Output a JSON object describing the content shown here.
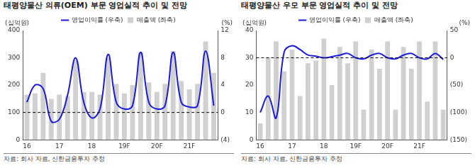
{
  "chart_data": [
    {
      "type": "bar",
      "title": "태평양물산 의류(OEM) 부문 영업실적 추이 및 전망",
      "ylabel": "(십억원)",
      "y2label": "(%)",
      "source": "자료: 회사 자료, 신한금융투자 추정",
      "categories": [
        "16",
        null,
        null,
        null,
        "17",
        null,
        null,
        null,
        "18",
        null,
        null,
        null,
        "19F",
        null,
        null,
        null,
        "20F",
        null,
        null,
        null,
        "21F",
        null,
        null,
        null
      ],
      "series": [
        {
          "name": "매출액 (좌축)",
          "type": "bar",
          "color": "#d0d0d0",
          "axis": "y",
          "values": [
            165,
            170,
            245,
            150,
            165,
            160,
            290,
            175,
            175,
            165,
            300,
            205,
            170,
            200,
            320,
            210,
            175,
            205,
            325,
            215,
            185,
            205,
            360,
            245
          ]
        },
        {
          "name": "영업이익률 (우축)",
          "type": "line",
          "color": "#1a1adb",
          "axis": "y2",
          "values": [
            1.5,
            4.0,
            3.5,
            -1.3,
            -1.0,
            2.5,
            8.0,
            1.5,
            -0.8,
            0.5,
            8.5,
            1.5,
            0.5,
            1.0,
            8.8,
            1.5,
            0.5,
            1.0,
            8.8,
            1.5,
            0.8,
            1.0,
            9.0,
            1.0
          ]
        }
      ],
      "ylim": [
        0,
        400
      ],
      "yticks": [
        0,
        100,
        200,
        300,
        400
      ],
      "y2lim": [
        -4,
        12
      ],
      "y2ticks": [
        {
          "value": -4,
          "label": "(4)"
        },
        0,
        4,
        8,
        12
      ],
      "grid": false,
      "legend": "top"
    },
    {
      "type": "bar",
      "title": "태평양물산 우모 부문 영업실적 추이 및 전망",
      "ylabel": "(십억원)",
      "y2label": "(%)",
      "source": "자료: 회사 자료, 신한금융투자 추정",
      "categories": [
        "16",
        null,
        null,
        null,
        "17",
        null,
        null,
        null,
        "18",
        null,
        null,
        null,
        "19F",
        null,
        null,
        null,
        "20F",
        null,
        null,
        null,
        "21F",
        null,
        null,
        null
      ],
      "series": [
        {
          "name": "매출액 (좌축)",
          "type": "bar",
          "color": "#d0d0d0",
          "axis": "y",
          "values": [
            6,
            30,
            36,
            25,
            33,
            16,
            28,
            29,
            37,
            20,
            34,
            28,
            36,
            11,
            33,
            26,
            36,
            11,
            34,
            26,
            36,
            14,
            36,
            11
          ]
        },
        {
          "name": "영업이익률 (우축)",
          "type": "line",
          "color": "#1a1adb",
          "axis": "y2",
          "values": [
            -100,
            -70,
            -110,
            10,
            22,
            15,
            5,
            3,
            0,
            2,
            5,
            8,
            0,
            -2,
            5,
            8,
            0,
            -2,
            5,
            8,
            0,
            -2,
            8,
            -3
          ]
        }
      ],
      "ylim": [
        0,
        40
      ],
      "yticks": [
        0,
        10,
        20,
        30,
        40
      ],
      "y2lim": [
        -150,
        50
      ],
      "y2ticks": [
        {
          "value": -150,
          "label": "(150)"
        },
        {
          "value": -100,
          "label": "(100)"
        },
        {
          "value": -50,
          "label": "(50)"
        },
        0,
        50
      ],
      "grid": false,
      "legend": "top"
    }
  ]
}
